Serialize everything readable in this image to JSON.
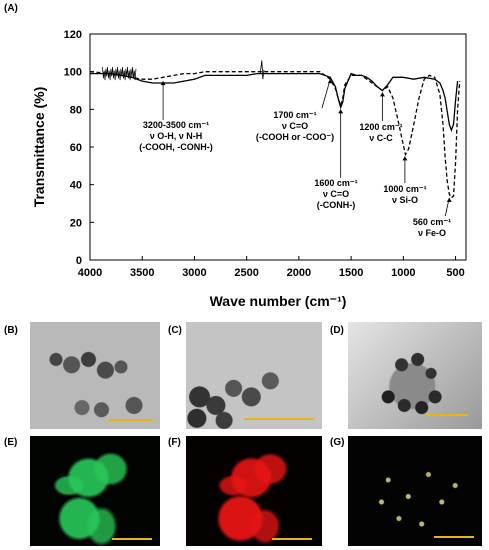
{
  "figure": {
    "panels": {
      "A": "(A)",
      "B": "(B)",
      "C": "(C)",
      "D": "(D)",
      "E": "(E)",
      "F": "(F)",
      "G": "(G)"
    }
  },
  "chart_data": {
    "type": "line",
    "ylabel": "Transmittance (%)",
    "xlabel": "Wave number (cm⁻¹)",
    "xlim": [
      4000,
      400
    ],
    "ylim": [
      0,
      120
    ],
    "x_ticks": [
      4000,
      3500,
      3000,
      2500,
      2000,
      1500,
      1000,
      500
    ],
    "y_ticks": [
      0,
      20,
      40,
      60,
      80,
      100,
      120
    ],
    "grid": false,
    "legend": "none",
    "series": [
      {
        "style": "solid",
        "color": "#000000",
        "x": [
          4000,
          3800,
          3700,
          3600,
          3500,
          3400,
          3300,
          3200,
          3100,
          3000,
          2900,
          2700,
          2500,
          2400,
          2350,
          2300,
          2100,
          1900,
          1800,
          1750,
          1700,
          1650,
          1620,
          1600,
          1580,
          1560,
          1500,
          1450,
          1400,
          1350,
          1300,
          1250,
          1200,
          1150,
          1100,
          1000,
          900,
          800,
          700,
          650,
          620,
          600,
          580,
          560,
          540,
          520,
          500,
          480
        ],
        "y": [
          99,
          99,
          98,
          97,
          95,
          94,
          94,
          94,
          95,
          96,
          98,
          98,
          98,
          99,
          99,
          99,
          99,
          99,
          99,
          98,
          97,
          92,
          85,
          81,
          84,
          91,
          99,
          98,
          98,
          97,
          95,
          92,
          90,
          93,
          97,
          97,
          96,
          97,
          96,
          94,
          90,
          86,
          79,
          72,
          69,
          72,
          85,
          95
        ]
      },
      {
        "style": "dashed",
        "color": "#000000",
        "x": [
          4000,
          3800,
          3700,
          3600,
          3500,
          3400,
          3300,
          3200,
          3100,
          3000,
          2900,
          2700,
          2500,
          2400,
          2350,
          2300,
          2100,
          1900,
          1800,
          1750,
          1700,
          1650,
          1620,
          1600,
          1580,
          1560,
          1500,
          1450,
          1400,
          1350,
          1300,
          1250,
          1200,
          1150,
          1100,
          1050,
          1000,
          980,
          950,
          900,
          850,
          800,
          750,
          700,
          650,
          620,
          600,
          580,
          560,
          540,
          520,
          500,
          480,
          460
        ],
        "y": [
          100,
          99,
          98,
          97,
          96,
          96,
          97,
          98,
          99,
          99,
          100,
          100,
          100,
          100,
          100,
          100,
          100,
          100,
          100,
          98,
          96,
          91,
          85,
          82,
          86,
          93,
          98,
          98,
          98,
          96,
          94,
          92,
          90,
          92,
          86,
          74,
          61,
          56,
          59,
          72,
          86,
          96,
          98,
          97,
          88,
          72,
          55,
          42,
          35,
          33,
          34,
          52,
          80,
          95
        ]
      }
    ],
    "annotations": [
      {
        "x": 3300,
        "lines": [
          "3200-3500 cm⁻¹",
          "ν O-H, ν N-H",
          "(-COOH, -CONH-)"
        ]
      },
      {
        "x": 1700,
        "lines": [
          "1700 cm⁻¹",
          "ν C=O",
          "(-COOH or -COO⁻)"
        ]
      },
      {
        "x": 1600,
        "lines": [
          "1600 cm⁻¹",
          "ν C=O",
          "(-CONH-)"
        ]
      },
      {
        "x": 1200,
        "lines": [
          "1200 cm⁻¹",
          "ν C-C"
        ]
      },
      {
        "x": 1000,
        "lines": [
          "1000 cm⁻¹",
          "ν Si-O"
        ]
      },
      {
        "x": 560,
        "lines": [
          "560 cm⁻¹",
          "ν Fe-O"
        ]
      }
    ]
  }
}
